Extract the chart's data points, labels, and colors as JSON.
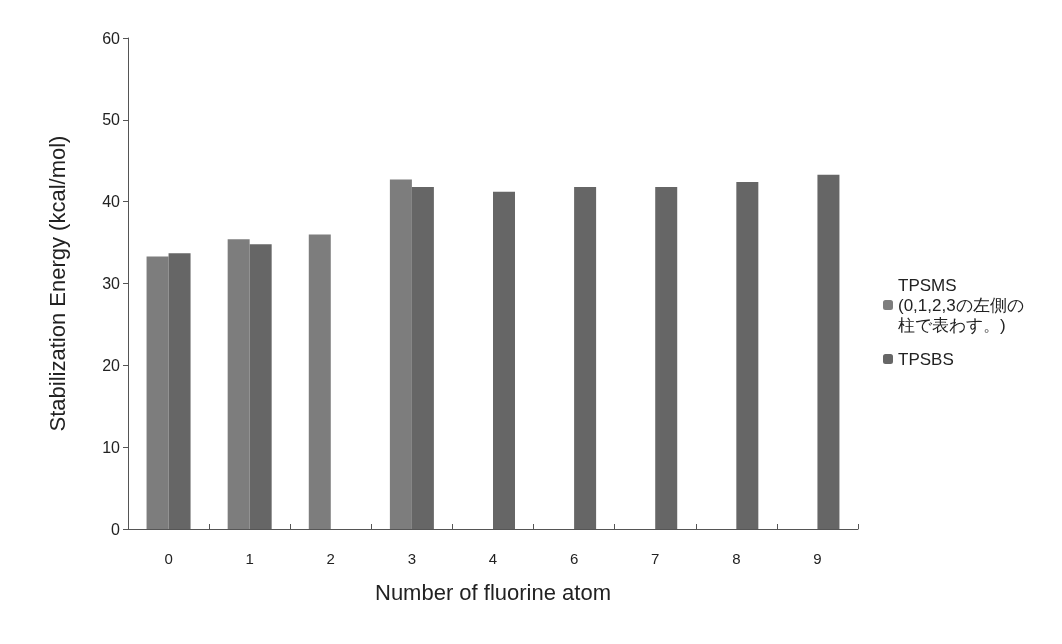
{
  "chart_data": {
    "type": "bar",
    "xlabel": "Number of fluorine atom",
    "ylabel": "Stabilization Energy (kcal/mol)",
    "categories": [
      "0",
      "1",
      "2",
      "3",
      "4",
      "6",
      "7",
      "8",
      "9"
    ],
    "series": [
      {
        "name": "TPSMS\n(0,1,2,3の左側の柱で表わす。)",
        "color": "#7d7d7d",
        "values": [
          33.3,
          35.4,
          36.0,
          42.7,
          null,
          null,
          null,
          null,
          null
        ]
      },
      {
        "name": "TPSBS",
        "color": "#666666",
        "values": [
          33.7,
          34.8,
          null,
          41.8,
          41.2,
          41.8,
          41.8,
          42.4,
          43.3
        ]
      }
    ],
    "ylim": [
      0,
      60
    ],
    "yticks": [
      0,
      10,
      20,
      30,
      40,
      50,
      60
    ],
    "grid": false,
    "legend": "right"
  }
}
